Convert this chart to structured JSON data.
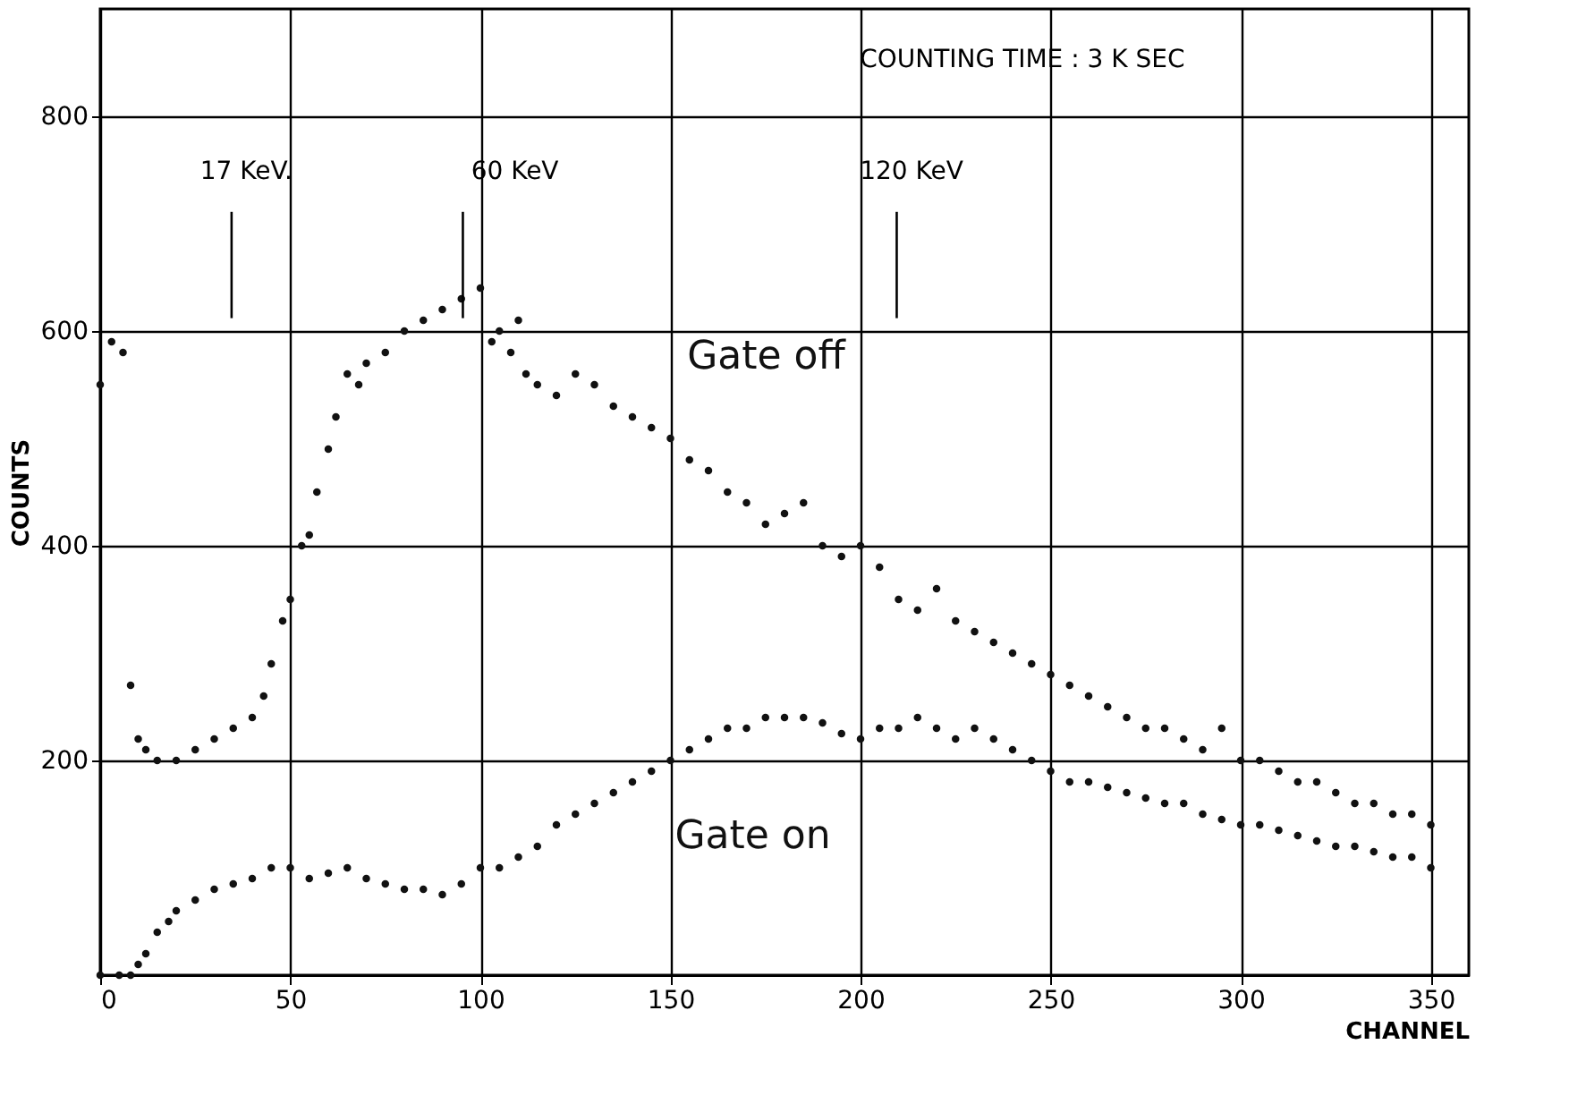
{
  "chart_data": {
    "type": "scatter",
    "xlabel": "CHANNEL",
    "ylabel": "COUNTS",
    "xlim": [
      0,
      360
    ],
    "ylim": [
      0,
      900
    ],
    "xticks": [
      0,
      50,
      100,
      150,
      200,
      250,
      300,
      350
    ],
    "yticks": [
      200,
      400,
      600,
      800
    ],
    "grid": true,
    "legend": false,
    "marker": "circle",
    "annotations": [
      "17 KeV.",
      "60 KeV",
      "120 KeV",
      "COUNTING TIME : 3 K SEC"
    ],
    "series": [
      {
        "name": "Gate off",
        "color": "#111111",
        "x": [
          0,
          3,
          6,
          8,
          10,
          12,
          15,
          20,
          25,
          30,
          35,
          40,
          43,
          45,
          48,
          50,
          53,
          55,
          57,
          60,
          62,
          65,
          68,
          70,
          75,
          80,
          85,
          90,
          95,
          100,
          103,
          105,
          108,
          110,
          112,
          115,
          120,
          125,
          130,
          135,
          140,
          145,
          150,
          155,
          160,
          165,
          170,
          175,
          180,
          185,
          190,
          195,
          200,
          205,
          210,
          215,
          220,
          225,
          230,
          235,
          240,
          245,
          250,
          255,
          260,
          265,
          270,
          275,
          280,
          285,
          290,
          295,
          300,
          305,
          310,
          315,
          320,
          325,
          330,
          335,
          340,
          345,
          350
        ],
        "values": [
          550,
          590,
          580,
          270,
          220,
          210,
          200,
          200,
          210,
          220,
          230,
          240,
          260,
          290,
          330,
          350,
          400,
          410,
          450,
          490,
          520,
          560,
          550,
          570,
          580,
          600,
          610,
          620,
          630,
          640,
          590,
          600,
          580,
          610,
          560,
          550,
          540,
          560,
          550,
          530,
          520,
          510,
          500,
          480,
          470,
          450,
          440,
          420,
          430,
          440,
          400,
          390,
          400,
          380,
          350,
          340,
          360,
          330,
          320,
          310,
          300,
          290,
          280,
          270,
          260,
          250,
          240,
          230,
          230,
          220,
          210,
          230,
          200,
          200,
          190,
          180,
          180,
          170,
          160,
          160,
          150,
          150,
          140
        ]
      },
      {
        "name": "Gate on",
        "color": "#111111",
        "x": [
          0,
          5,
          8,
          10,
          12,
          15,
          18,
          20,
          25,
          30,
          35,
          40,
          45,
          50,
          55,
          60,
          65,
          70,
          75,
          80,
          85,
          90,
          95,
          100,
          105,
          110,
          115,
          120,
          125,
          130,
          135,
          140,
          145,
          150,
          155,
          160,
          165,
          170,
          175,
          180,
          185,
          190,
          195,
          200,
          205,
          210,
          215,
          220,
          225,
          230,
          235,
          240,
          245,
          250,
          255,
          260,
          265,
          270,
          275,
          280,
          285,
          290,
          295,
          300,
          305,
          310,
          315,
          320,
          325,
          330,
          335,
          340,
          345,
          350
        ],
        "values": [
          0,
          0,
          0,
          10,
          20,
          40,
          50,
          60,
          70,
          80,
          85,
          90,
          100,
          100,
          90,
          95,
          100,
          90,
          85,
          80,
          80,
          75,
          85,
          100,
          100,
          110,
          120,
          140,
          150,
          160,
          170,
          180,
          190,
          200,
          210,
          220,
          230,
          230,
          240,
          240,
          240,
          235,
          225,
          220,
          230,
          230,
          240,
          230,
          220,
          230,
          220,
          210,
          200,
          190,
          180,
          180,
          175,
          170,
          165,
          160,
          160,
          150,
          145,
          140,
          140,
          135,
          130,
          125,
          120,
          120,
          115,
          110,
          110,
          100
        ]
      }
    ]
  }
}
